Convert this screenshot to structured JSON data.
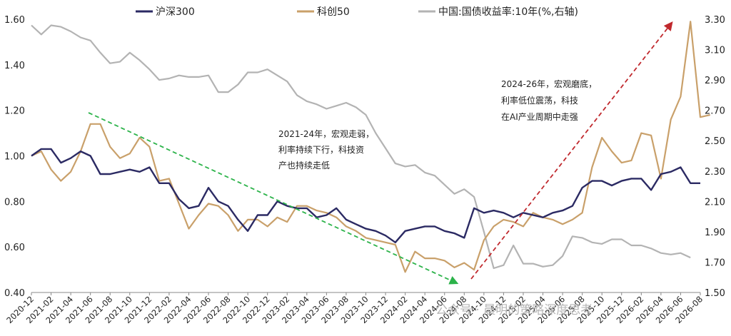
{
  "chart_data": {
    "type": "line",
    "left_axis": {
      "ylim": [
        0.4,
        1.6
      ],
      "ticks": [
        "0.40",
        "0.60",
        "0.80",
        "1.00",
        "1.20",
        "1.40",
        "1.60"
      ]
    },
    "right_axis": {
      "ylim": [
        1.5,
        3.3
      ],
      "ticks": [
        "1.50",
        "1.70",
        "1.90",
        "2.10",
        "2.30",
        "2.50",
        "2.70",
        "2.90",
        "3.10",
        "3.30"
      ]
    },
    "x_start": "2020-12",
    "x_tick_labels": [
      "2020-12",
      "2021-02",
      "2021-04",
      "2021-06",
      "2021-08",
      "2021-10",
      "2021-12",
      "2022-02",
      "2022-04",
      "2022-06",
      "2022-08",
      "2022-10",
      "2022-12",
      "2023-02",
      "2023-04",
      "2023-06",
      "2023-08",
      "2023-10",
      "2023-12",
      "2024-02",
      "2024-04",
      "2024-06",
      "2024-08",
      "2024-10",
      "2024-12",
      "2025-02",
      "2025-04",
      "2025-06",
      "2025-08",
      "2025-10",
      "2025-12",
      "2026-02",
      "2026-04",
      "2026-06",
      "2026-08"
    ],
    "legend_placement": "top",
    "series": [
      {
        "name": "沪深300",
        "axis": "left",
        "color": "#2b2a63",
        "values": [
          1.0,
          1.03,
          1.03,
          0.97,
          0.99,
          1.02,
          1.0,
          0.92,
          0.92,
          0.93,
          0.94,
          0.93,
          0.95,
          0.88,
          0.88,
          0.81,
          0.77,
          0.78,
          0.86,
          0.8,
          0.78,
          0.72,
          0.67,
          0.74,
          0.74,
          0.8,
          0.78,
          0.77,
          0.77,
          0.73,
          0.74,
          0.77,
          0.72,
          0.7,
          0.68,
          0.67,
          0.65,
          0.62,
          0.67,
          0.68,
          0.69,
          0.69,
          0.67,
          0.66,
          0.64,
          0.77,
          0.75,
          0.76,
          0.75,
          0.73,
          0.75,
          0.74,
          0.73,
          0.75,
          0.76,
          0.78,
          0.86,
          0.89,
          0.89,
          0.87,
          0.89,
          0.9,
          0.9,
          0.85,
          0.92,
          0.93,
          0.95,
          0.88,
          0.88
        ]
      },
      {
        "name": "科创50",
        "axis": "left",
        "color": "#c9a06a",
        "values": [
          1.0,
          1.02,
          0.94,
          0.89,
          0.93,
          1.02,
          1.14,
          1.14,
          1.04,
          0.99,
          1.01,
          1.08,
          1.04,
          0.89,
          0.9,
          0.79,
          0.68,
          0.74,
          0.79,
          0.78,
          0.74,
          0.67,
          0.72,
          0.72,
          0.69,
          0.73,
          0.71,
          0.78,
          0.78,
          0.76,
          0.75,
          0.73,
          0.69,
          0.67,
          0.64,
          0.63,
          0.62,
          0.61,
          0.49,
          0.58,
          0.55,
          0.55,
          0.54,
          0.51,
          0.53,
          0.5,
          0.63,
          0.69,
          0.72,
          0.71,
          0.69,
          0.75,
          0.73,
          0.72,
          0.7,
          0.72,
          0.75,
          0.95,
          1.08,
          1.02,
          0.97,
          0.98,
          1.1,
          1.09,
          0.9,
          1.16,
          1.26,
          1.59,
          1.17,
          1.18
        ]
      },
      {
        "name": "中国:国债收益率:10年(%,右轴)",
        "axis": "right",
        "color": "#b3b3b3",
        "values": [
          3.26,
          3.2,
          3.26,
          3.25,
          3.22,
          3.18,
          3.16,
          3.08,
          3.01,
          3.02,
          3.08,
          3.03,
          2.97,
          2.9,
          2.91,
          2.93,
          2.92,
          2.92,
          2.93,
          2.82,
          2.82,
          2.87,
          2.95,
          2.95,
          2.97,
          2.93,
          2.89,
          2.8,
          2.76,
          2.74,
          2.71,
          2.73,
          2.75,
          2.72,
          2.67,
          2.55,
          2.45,
          2.35,
          2.33,
          2.34,
          2.29,
          2.27,
          2.21,
          2.15,
          2.18,
          2.13,
          1.9,
          1.66,
          1.68,
          1.81,
          1.69,
          1.69,
          1.67,
          1.68,
          1.74,
          1.87,
          1.86,
          1.83,
          1.82,
          1.85,
          1.85,
          1.81,
          1.81,
          1.79,
          1.76,
          1.75,
          1.76,
          1.73
        ]
      }
    ],
    "annotations": [
      {
        "lines": [
          "2021-24年，宏观走弱，",
          "利率持续下行，科技资",
          "产也持续走低"
        ],
        "arrow_color": "#2cb34a"
      },
      {
        "lines": [
          "2024-26年，宏观磨底，",
          "利率低位震荡，科技",
          "在AI产业周期中走强"
        ],
        "arrow_color": "#c0282d"
      }
    ]
  },
  "watermark": "公众号 · 晨明的策略深度思考"
}
